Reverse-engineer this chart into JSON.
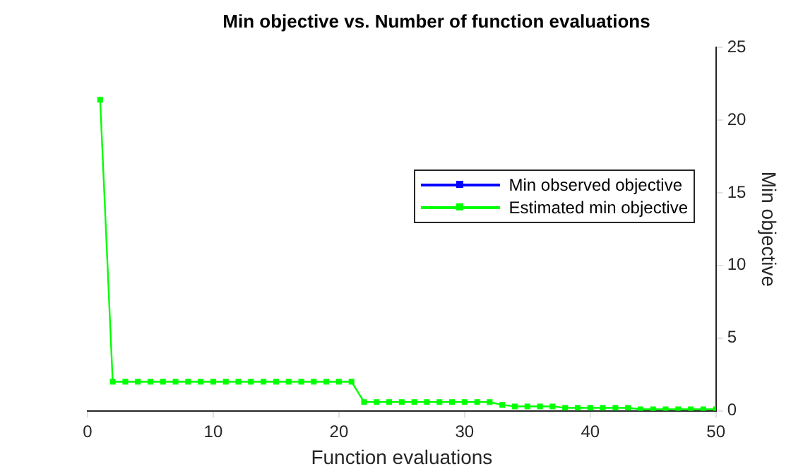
{
  "chart_data": {
    "type": "line",
    "title": "Min objective vs. Number of function evaluations",
    "xlabel": "Function evaluations",
    "ylabel": "Min objective",
    "x": [
      1,
      2,
      3,
      4,
      5,
      6,
      7,
      8,
      9,
      10,
      11,
      12,
      13,
      14,
      15,
      16,
      17,
      18,
      19,
      20,
      21,
      22,
      23,
      24,
      25,
      26,
      27,
      28,
      29,
      30,
      31,
      32,
      33,
      34,
      35,
      36,
      37,
      38,
      39,
      40,
      41,
      42,
      43,
      44,
      45,
      46,
      47,
      48,
      49,
      50
    ],
    "series": [
      {
        "name": "Min observed objective",
        "color": "#0000ff",
        "values": [
          null,
          null,
          null,
          null,
          null,
          null,
          null,
          null,
          null,
          null,
          null,
          null,
          null,
          null,
          null,
          null,
          null,
          null,
          null,
          null,
          null,
          null,
          null,
          null,
          null,
          null,
          null,
          null,
          null,
          null,
          null,
          null,
          null,
          null,
          null,
          null,
          null,
          null,
          null,
          null,
          null,
          null,
          null,
          null,
          null,
          null,
          null,
          null,
          null,
          null
        ]
      },
      {
        "name": "Estimated min objective",
        "color": "#00ff00",
        "values": [
          21.4,
          2,
          2,
          2,
          2,
          2,
          2,
          2,
          2,
          2,
          2,
          2,
          2,
          2,
          2,
          2,
          2,
          2,
          2,
          2,
          2,
          0.6,
          0.6,
          0.6,
          0.6,
          0.6,
          0.6,
          0.6,
          0.6,
          0.6,
          0.6,
          0.6,
          0.4,
          0.3,
          0.3,
          0.3,
          0.3,
          0.2,
          0.2,
          0.2,
          0.2,
          0.2,
          0.2,
          0.1,
          0.1,
          0.1,
          0.1,
          0.1,
          0.1,
          0.1
        ]
      }
    ],
    "xlim": [
      0,
      50
    ],
    "xticks": [
      0,
      10,
      20,
      30,
      40,
      50
    ],
    "ylim": [
      0,
      25
    ],
    "yticks": [
      0,
      5,
      10,
      15,
      20,
      25
    ],
    "grid": false,
    "legend": "right",
    "marker": "square",
    "line_style": "solid"
  }
}
